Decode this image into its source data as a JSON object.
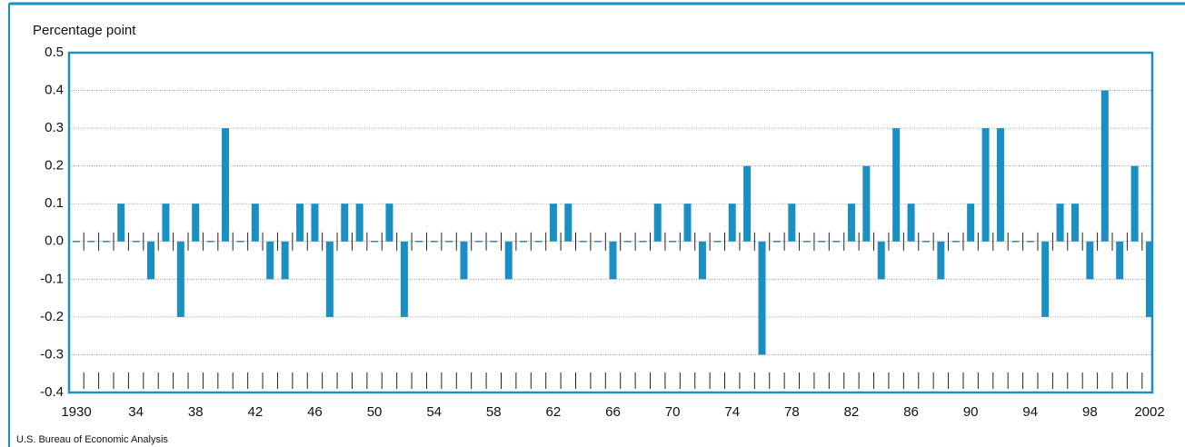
{
  "chart_data": {
    "type": "bar",
    "y_label": "Percentage point",
    "source": "U.S. Bureau of Economic Analysis",
    "categories": [
      "1930",
      null,
      null,
      null,
      "34",
      null,
      null,
      null,
      "38",
      null,
      null,
      null,
      "42",
      null,
      null,
      null,
      "46",
      null,
      null,
      null,
      "50",
      null,
      null,
      null,
      "54",
      null,
      null,
      null,
      "58",
      null,
      null,
      null,
      "62",
      null,
      null,
      null,
      "66",
      null,
      null,
      null,
      "70",
      null,
      null,
      null,
      "74",
      null,
      null,
      null,
      "78",
      null,
      null,
      null,
      "82",
      null,
      null,
      null,
      "86",
      null,
      null,
      null,
      "90",
      null,
      null,
      null,
      "94",
      null,
      null,
      null,
      "98",
      null,
      null,
      null,
      "2002"
    ],
    "values": [
      0,
      0,
      0,
      0.1,
      0,
      -0.1,
      0.1,
      -0.2,
      0.1,
      0,
      0.3,
      0,
      0.1,
      -0.1,
      -0.1,
      0.1,
      0.1,
      -0.2,
      0.1,
      0.1,
      0,
      0.1,
      -0.2,
      0,
      0,
      0,
      -0.1,
      0,
      0,
      -0.1,
      0,
      0,
      0.1,
      0.1,
      0,
      0,
      -0.1,
      0,
      0,
      0.1,
      0,
      0.1,
      -0.1,
      0,
      0.1,
      0.2,
      -0.3,
      0,
      0.1,
      0,
      0,
      0,
      0.1,
      0.2,
      -0.1,
      0.3,
      0.1,
      0,
      -0.1,
      0,
      0.1,
      0.3,
      0.3,
      0,
      0,
      -0.2,
      0.1,
      0.1,
      -0.1,
      0.4,
      -0.1,
      0.2,
      -0.2
    ],
    "color": "#1a8fc4",
    "ylim": [
      -0.4,
      0.5
    ],
    "yticks": [
      0.5,
      0.4,
      0.3,
      0.2,
      0.1,
      {
        "value": 0,
        "label": "0.0"
      },
      -0.1,
      -0.2,
      -0.3,
      -0.4
    ],
    "grid": true
  }
}
